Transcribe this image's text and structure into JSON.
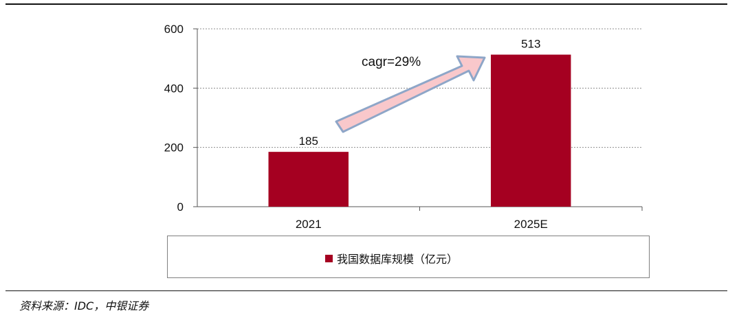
{
  "chart_data": {
    "type": "bar",
    "categories": [
      "2021",
      "2025E"
    ],
    "series": [
      {
        "name": "我国数据库规模（亿元）",
        "values": [
          185,
          513
        ]
      }
    ],
    "data_labels": [
      "185",
      "513"
    ],
    "ylim": [
      0,
      600
    ],
    "yticks": [
      0,
      200,
      400,
      600
    ],
    "annotation": "cagr=29%",
    "grid": true,
    "legend_position": "bottom"
  },
  "colors": {
    "bar": "#A50021",
    "arrow_fill": "#F9C8CB",
    "arrow_stroke": "#8EA6C8",
    "grid": "#8c8c8c"
  },
  "source": "资料来源：IDC，中银证券"
}
